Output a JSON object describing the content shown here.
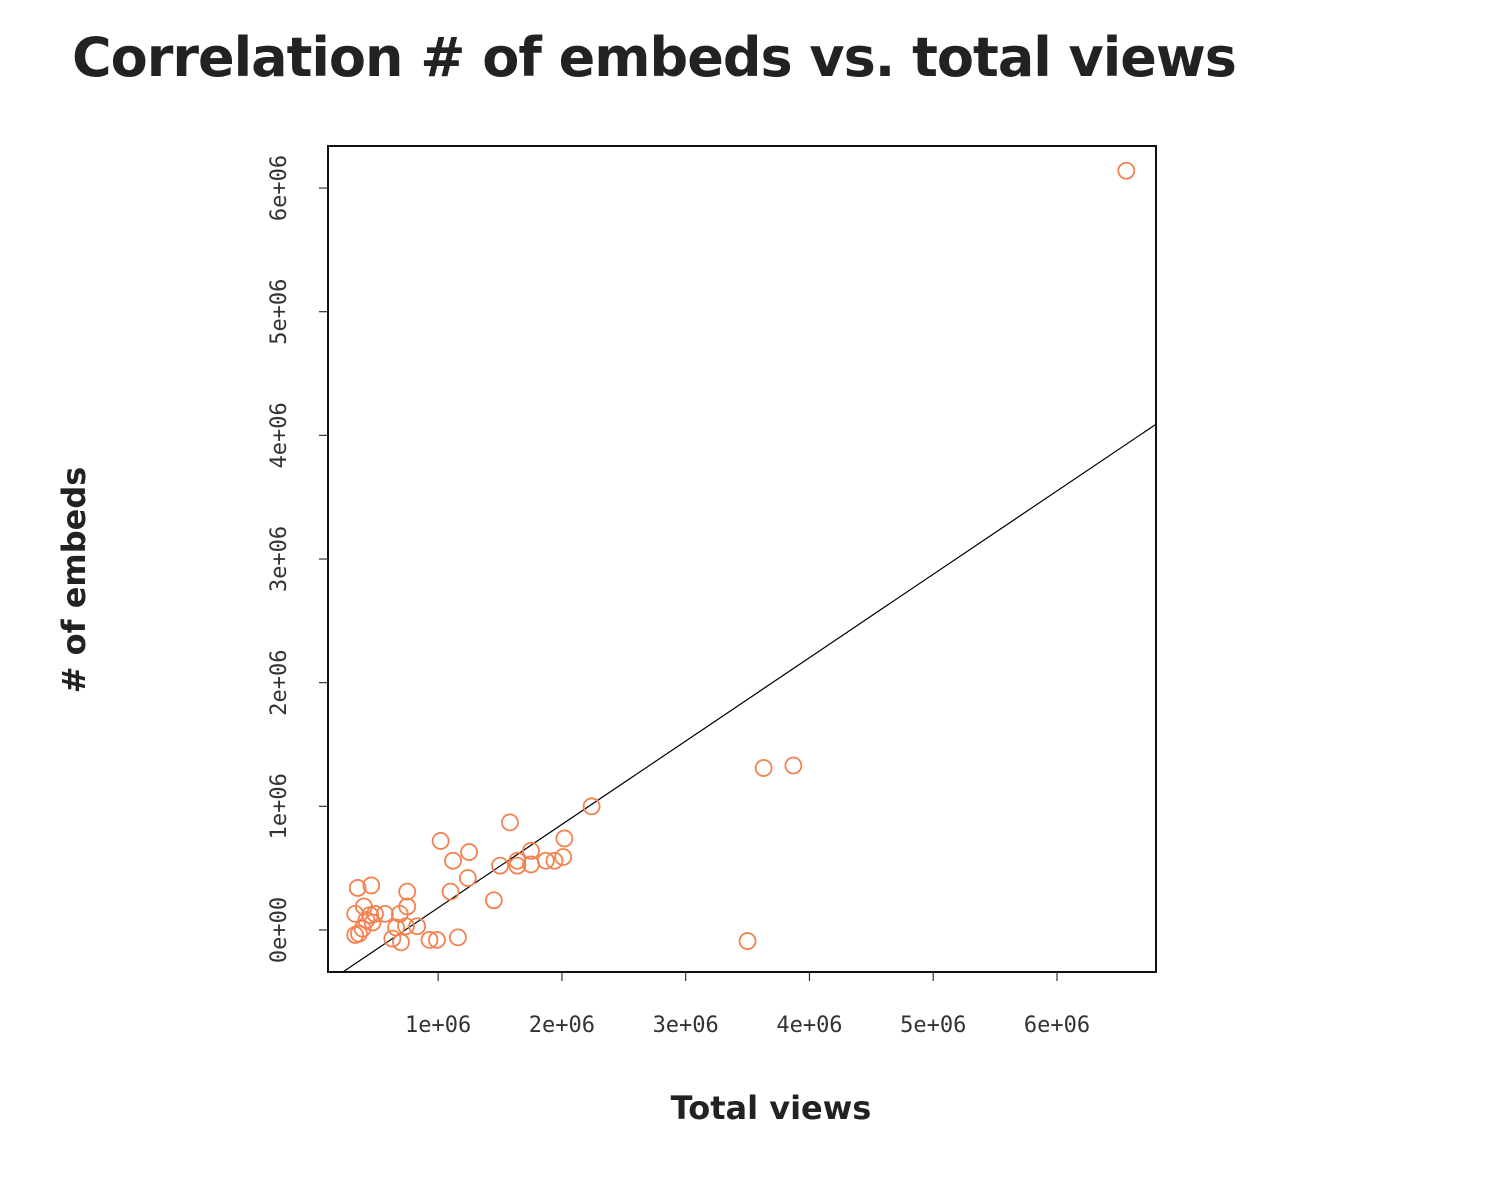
{
  "chart_data": {
    "type": "scatter",
    "title": "Correlation # of embeds vs. total views",
    "xlabel": "Total views",
    "ylabel": "# of embeds",
    "xlim": [
      110000,
      6800000
    ],
    "ylim": [
      -340000,
      6340000
    ],
    "x_ticks": [
      {
        "value": 1000000,
        "label": "1e+06"
      },
      {
        "value": 2000000,
        "label": "2e+06"
      },
      {
        "value": 3000000,
        "label": "3e+06"
      },
      {
        "value": 4000000,
        "label": "4e+06"
      },
      {
        "value": 5000000,
        "label": "5e+06"
      },
      {
        "value": 6000000,
        "label": "6e+06"
      }
    ],
    "y_ticks": [
      {
        "value": 0,
        "label": "0e+00"
      },
      {
        "value": 1000000,
        "label": "1e+06"
      },
      {
        "value": 2000000,
        "label": "2e+06"
      },
      {
        "value": 3000000,
        "label": "3e+06"
      },
      {
        "value": 4000000,
        "label": "4e+06"
      },
      {
        "value": 5000000,
        "label": "5e+06"
      },
      {
        "value": 6000000,
        "label": "6e+06"
      }
    ],
    "marker_color": "#f4814f",
    "line_color": "#000000",
    "grid": false,
    "regression_line": {
      "x": [
        230000,
        6800000
      ],
      "y": [
        -340000,
        4090000
      ]
    },
    "points": [
      {
        "x": 330000,
        "y": -40000
      },
      {
        "x": 360000,
        "y": -30000
      },
      {
        "x": 390000,
        "y": 10000
      },
      {
        "x": 350000,
        "y": 340000
      },
      {
        "x": 460000,
        "y": 360000
      },
      {
        "x": 330000,
        "y": 130000
      },
      {
        "x": 400000,
        "y": 190000
      },
      {
        "x": 420000,
        "y": 80000
      },
      {
        "x": 450000,
        "y": 120000
      },
      {
        "x": 490000,
        "y": 130000
      },
      {
        "x": 570000,
        "y": 130000
      },
      {
        "x": 470000,
        "y": 60000
      },
      {
        "x": 630000,
        "y": -70000
      },
      {
        "x": 660000,
        "y": 20000
      },
      {
        "x": 690000,
        "y": 130000
      },
      {
        "x": 700000,
        "y": -100000
      },
      {
        "x": 740000,
        "y": 30000
      },
      {
        "x": 750000,
        "y": 190000
      },
      {
        "x": 750000,
        "y": 310000
      },
      {
        "x": 830000,
        "y": 30000
      },
      {
        "x": 930000,
        "y": -80000
      },
      {
        "x": 990000,
        "y": -80000
      },
      {
        "x": 1160000,
        "y": -60000
      },
      {
        "x": 1100000,
        "y": 310000
      },
      {
        "x": 1240000,
        "y": 420000
      },
      {
        "x": 1020000,
        "y": 720000
      },
      {
        "x": 1120000,
        "y": 560000
      },
      {
        "x": 1250000,
        "y": 630000
      },
      {
        "x": 1450000,
        "y": 240000
      },
      {
        "x": 1500000,
        "y": 520000
      },
      {
        "x": 1580000,
        "y": 870000
      },
      {
        "x": 1640000,
        "y": 560000
      },
      {
        "x": 1640000,
        "y": 520000
      },
      {
        "x": 1750000,
        "y": 640000
      },
      {
        "x": 1750000,
        "y": 530000
      },
      {
        "x": 1870000,
        "y": 560000
      },
      {
        "x": 1940000,
        "y": 560000
      },
      {
        "x": 2010000,
        "y": 590000
      },
      {
        "x": 2020000,
        "y": 740000
      },
      {
        "x": 2240000,
        "y": 1000000
      },
      {
        "x": 3500000,
        "y": -90000
      },
      {
        "x": 3630000,
        "y": 1310000
      },
      {
        "x": 3870000,
        "y": 1330000
      },
      {
        "x": 6560000,
        "y": 6140000
      }
    ]
  }
}
